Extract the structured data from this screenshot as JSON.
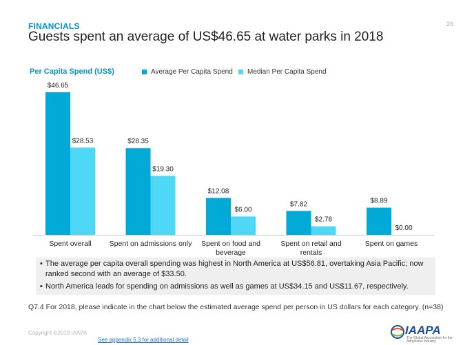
{
  "header": {
    "section": "FINANCIALS",
    "title": "Guests spent an average of US$46.65 at water parks in 2018",
    "page_number": "26"
  },
  "chart_data": {
    "type": "bar",
    "title": "Per Capita Spend (US$)",
    "categories": [
      [
        "Spent overall"
      ],
      [
        "Spent on admissions only"
      ],
      [
        "Spent on food and",
        "beverage"
      ],
      [
        "Spent on retail and",
        "rentals"
      ],
      [
        "Spent on games"
      ]
    ],
    "series": [
      {
        "name": "Average Per Capita Spend",
        "color": "#00a9d6",
        "values": [
          46.65,
          28.35,
          12.08,
          7.82,
          8.89
        ],
        "labels": [
          "$46.65",
          "$28.35",
          "$12.08",
          "$7.82",
          "$8.89"
        ]
      },
      {
        "name": "Median Per Capita Spend",
        "color": "#4fd8f5",
        "values": [
          28.53,
          19.3,
          6.0,
          2.78,
          0.0
        ],
        "labels": [
          "$28.53",
          "$19.30",
          "$6.00",
          "$2.78",
          "$0.00"
        ]
      }
    ],
    "ylim": [
      0,
      46.65
    ],
    "legend_position": "top"
  },
  "notes": [
    "The average per capita overall spending was highest in North America at US$56.81, overtaking Asia Pacific; now ranked second with an average of $33.50.",
    "North America leads for spending on admissions as well as games at US$34.15 and US$11.67, respectively."
  ],
  "question": "Q7.4 For 2018, please indicate in the chart below the estimated average spend per person in US dollars for each category. (n=38)",
  "footer": {
    "copyright": "Copyright ©2019 IAAPA",
    "appendix_link": "See appendix 5.3 for additional detail",
    "logo_name": "IAAPA",
    "logo_tagline": "The Global Association for the Attractions Industry"
  }
}
